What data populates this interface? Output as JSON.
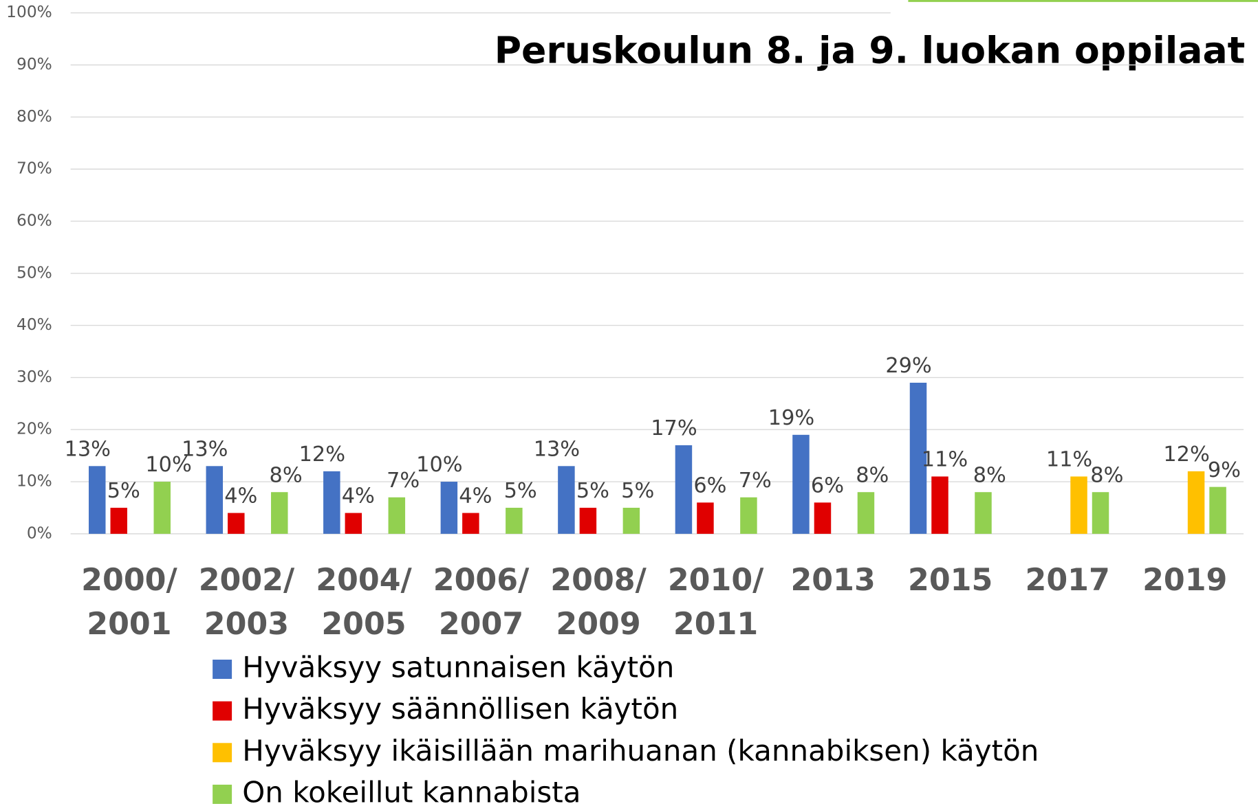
{
  "chart_data": {
    "type": "bar",
    "title": "Peruskoulun 8. ja 9. luokan oppilaat",
    "categories": [
      "2000/2001",
      "2002/2003",
      "2004/2005",
      "2006/2007",
      "2008/2009",
      "2010/2011",
      "2013",
      "2015",
      "2017",
      "2019"
    ],
    "series": [
      {
        "name": "Hyväksyy satunnaisen käytön",
        "color": "#4472c4",
        "values": [
          13,
          13,
          12,
          10,
          13,
          17,
          19,
          29,
          null,
          null
        ],
        "value_labels": [
          "13%",
          "13%",
          "12%",
          "10%",
          "13%",
          "17%",
          "19%",
          "29%",
          null,
          null
        ]
      },
      {
        "name": "Hyväksyy säännöllisen käytön",
        "color": "#e00000",
        "values": [
          5,
          4,
          4,
          4,
          5,
          6,
          6,
          11,
          null,
          null
        ],
        "value_labels": [
          "5%",
          "4%",
          "4%",
          "4%",
          "5%",
          "6%",
          "6%",
          "11%",
          null,
          null
        ]
      },
      {
        "name": "Hyväksyy ikäisillään marihuanan (kannabiksen) käytön",
        "color": "#ffc000",
        "values": [
          null,
          null,
          null,
          null,
          null,
          null,
          null,
          null,
          11,
          12
        ],
        "value_labels": [
          null,
          null,
          null,
          null,
          null,
          null,
          null,
          null,
          "11%",
          "12%"
        ]
      },
      {
        "name": "On kokeillut kannabista",
        "color": "#92d050",
        "values": [
          10,
          8,
          7,
          5,
          5,
          7,
          8,
          8,
          8,
          9
        ],
        "value_labels": [
          "10%",
          "8%",
          "7%",
          "5%",
          "5%",
          "7%",
          "8%",
          "8%",
          "8%",
          "9%"
        ]
      }
    ],
    "ylim": [
      0,
      100
    ],
    "yticks": [
      {
        "value": 0,
        "label": "0%"
      },
      {
        "value": 10,
        "label": "10%"
      },
      {
        "value": 20,
        "label": "20%"
      },
      {
        "value": 30,
        "label": "30%"
      },
      {
        "value": 40,
        "label": "40%"
      },
      {
        "value": 50,
        "label": "50%"
      },
      {
        "value": 60,
        "label": "60%"
      },
      {
        "value": 70,
        "label": "70%"
      },
      {
        "value": 80,
        "label": "80%"
      },
      {
        "value": 90,
        "label": "90%"
      },
      {
        "value": 100,
        "label": "100%"
      }
    ],
    "grid": true
  }
}
